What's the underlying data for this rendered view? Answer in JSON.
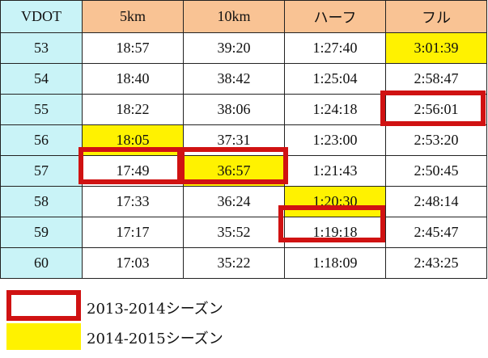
{
  "table": {
    "headers": [
      "VDOT",
      "5km",
      "10km",
      "ハーフ",
      "フル"
    ],
    "rows": [
      {
        "vdot": "53",
        "k5": "18:57",
        "k10": "39:20",
        "half": "1:27:40",
        "full": "3:01:39"
      },
      {
        "vdot": "54",
        "k5": "18:40",
        "k10": "38:42",
        "half": "1:25:04",
        "full": "2:58:47"
      },
      {
        "vdot": "55",
        "k5": "18:22",
        "k10": "38:06",
        "half": "1:24:18",
        "full": "2:56:01"
      },
      {
        "vdot": "56",
        "k5": "18:05",
        "k10": "37:31",
        "half": "1:23:00",
        "full": "2:53:20"
      },
      {
        "vdot": "57",
        "k5": "17:49",
        "k10": "36:57",
        "half": "1:21:43",
        "full": "2:50:45"
      },
      {
        "vdot": "58",
        "k5": "17:33",
        "k10": "36:24",
        "half": "1:20:30",
        "full": "2:48:14"
      },
      {
        "vdot": "59",
        "k5": "17:17",
        "k10": "35:52",
        "half": "1:19:18",
        "full": "2:45:47"
      },
      {
        "vdot": "60",
        "k5": "17:03",
        "k10": "35:22",
        "half": "1:18:09",
        "full": "2:43:25"
      }
    ]
  },
  "legend": {
    "season_2013_2014": "2013-2014シーズン",
    "season_2014_2015": "2014-2015シーズン"
  },
  "colors": {
    "header_bg": "#f9c394",
    "vdot_bg": "#c9f3f7",
    "highlight_2014_2015": "#fff200",
    "highlight_2013_2014_border": "#d01212"
  }
}
